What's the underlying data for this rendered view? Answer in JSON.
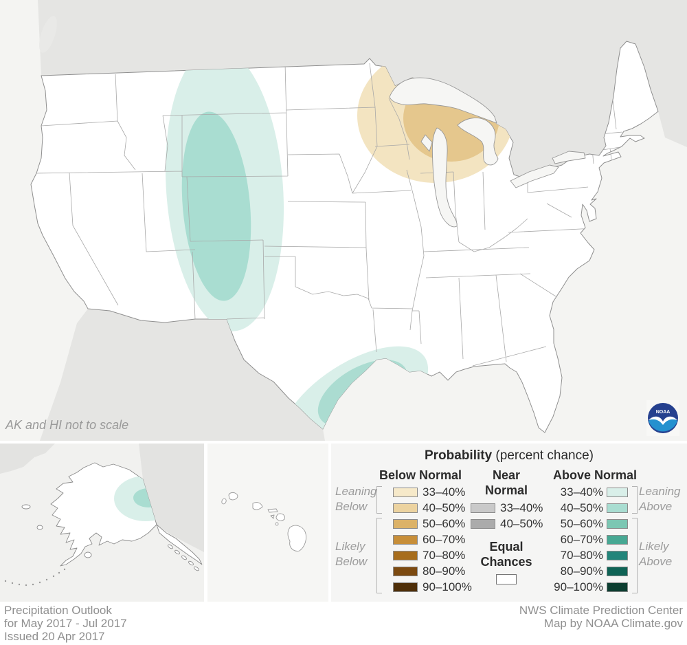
{
  "map": {
    "note": "AK and HI not to scale",
    "noaa_text": "NOAA",
    "regions": [
      {
        "name": "west-central-above-outer",
        "category": "Above Normal",
        "probability": "33–40%",
        "color": "#d9efe9"
      },
      {
        "name": "west-central-above-inner",
        "category": "Above Normal",
        "probability": "40–50%",
        "color": "#a9ddd1"
      },
      {
        "name": "gulf-coast-above-outer",
        "category": "Above Normal",
        "probability": "33–40%",
        "color": "#d9efe9"
      },
      {
        "name": "gulf-coast-above-inner",
        "category": "Above Normal",
        "probability": "40–50%",
        "color": "#abdcd1"
      },
      {
        "name": "upper-midwest-below-outer",
        "category": "Below Normal",
        "probability": "33–40%",
        "color": "#f3e4c1"
      },
      {
        "name": "upper-midwest-below-inner",
        "category": "Below Normal",
        "probability": "40–50%",
        "color": "#e5c78d"
      },
      {
        "name": "alaska-above-outer",
        "category": "Above Normal",
        "probability": "33–40%",
        "color": "#d9efe9"
      },
      {
        "name": "alaska-above-inner",
        "category": "Above Normal",
        "probability": "40–50%",
        "color": "#a9ddd1"
      }
    ]
  },
  "legend": {
    "title_bold": "Probability",
    "title_rest": " (percent chance)",
    "below": {
      "header": "Below Normal",
      "rows": [
        {
          "label": "33–40%",
          "color": "#f6e9c9"
        },
        {
          "label": "40–50%",
          "color": "#ecd3a0"
        },
        {
          "label": "50–60%",
          "color": "#dcb267"
        },
        {
          "label": "60–70%",
          "color": "#c78e38"
        },
        {
          "label": "70–80%",
          "color": "#a76d1c"
        },
        {
          "label": "80–90%",
          "color": "#7c4a10"
        },
        {
          "label": "90–100%",
          "color": "#4e2e08"
        }
      ]
    },
    "near": {
      "header_line1": "Near",
      "header_line2": "Normal",
      "rows": [
        {
          "label": "33–40%",
          "color": "#c9c9c9"
        },
        {
          "label": "40–50%",
          "color": "#ababab"
        }
      ]
    },
    "above": {
      "header": "Above Normal",
      "rows": [
        {
          "label": "33–40%",
          "color": "#d9efe9"
        },
        {
          "label": "40–50%",
          "color": "#a9ddd1"
        },
        {
          "label": "50–60%",
          "color": "#7cc7b3"
        },
        {
          "label": "60–70%",
          "color": "#47a893"
        },
        {
          "label": "70–80%",
          "color": "#22857a"
        },
        {
          "label": "80–90%",
          "color": "#0f6355"
        },
        {
          "label": "90–100%",
          "color": "#0c3d30"
        }
      ]
    },
    "equal": {
      "label_line1": "Equal",
      "label_line2": "Chances",
      "color": "#ffffff"
    },
    "groups": {
      "leaning_below_1": "Leaning",
      "leaning_below_2": "Below",
      "likely_below_1": "Likely",
      "likely_below_2": "Below",
      "leaning_above_1": "Leaning",
      "leaning_above_2": "Above",
      "likely_above_1": "Likely",
      "likely_above_2": "Above"
    }
  },
  "footer": {
    "left_line1": "Precipitation Outlook",
    "left_line2": "for May 2017 - Jul 2017",
    "left_line3": "Issued 20 Apr 2017",
    "right_line1": "NWS Climate Prediction Center",
    "right_line2": "Map by NOAA Climate.gov"
  }
}
